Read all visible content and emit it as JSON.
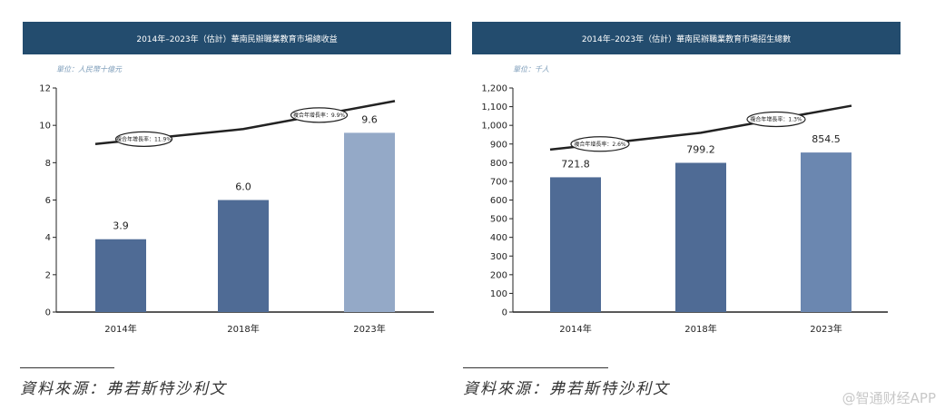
{
  "charts": [
    {
      "title": "2014年–2023年（估計）華南民辦職業教育市場總收益",
      "unit": "單位：人民幣十億元",
      "source": "資料來源：弗若斯特沙利文"
    },
    {
      "title": "2014年–2023年（估計）華南民辦職業教育市場招生總數",
      "unit": "單位：千人",
      "source": "資料來源：弗若斯特沙利文"
    }
  ],
  "watermark": "@智通财经APP",
  "chart_data": [
    {
      "type": "bar",
      "categories": [
        "2014年",
        "2018年",
        "2023年"
      ],
      "values": [
        3.9,
        6.0,
        9.6
      ],
      "value_labels": [
        "3.9",
        "6.0",
        "9.6"
      ],
      "bar_colors": [
        "#4f6b95",
        "#4f6b95",
        "#94a9c7"
      ],
      "ylim": [
        0,
        12
      ],
      "yticks": [
        0,
        2,
        4,
        6,
        8,
        10,
        12
      ],
      "ytick_labels": [
        "0",
        "2",
        "4",
        "6",
        "8",
        "10",
        "12"
      ],
      "grid": false,
      "trend_line": [
        9.0,
        9.8,
        11.3
      ],
      "cagr_labels": [
        "複合年增長率：11.9%",
        "複合年增長率：9.9%"
      ],
      "title": "2014年–2023年（估計）華南民辦職業教育市場總收益"
    },
    {
      "type": "bar",
      "categories": [
        "2014年",
        "2018年",
        "2023年"
      ],
      "values": [
        721.8,
        799.2,
        854.5
      ],
      "value_labels": [
        "721.8",
        "799.2",
        "854.5"
      ],
      "bar_colors": [
        "#4f6b95",
        "#4f6b95",
        "#6b87b0"
      ],
      "ylim": [
        0,
        1200
      ],
      "yticks": [
        0,
        100,
        200,
        300,
        400,
        500,
        600,
        700,
        800,
        900,
        1000,
        1100,
        1200
      ],
      "ytick_labels": [
        "0",
        "100",
        "200",
        "300",
        "400",
        "500",
        "600",
        "700",
        "800",
        "900",
        "1,000",
        "1,100",
        "1,200"
      ],
      "grid": false,
      "trend_line": [
        870,
        960,
        1105
      ],
      "cagr_labels": [
        "複合年增長率：2.6%",
        "複合年增長率：1.3%"
      ],
      "title": "2014年–2023年（估計）華南民辦職業教育市場招生總數"
    }
  ]
}
